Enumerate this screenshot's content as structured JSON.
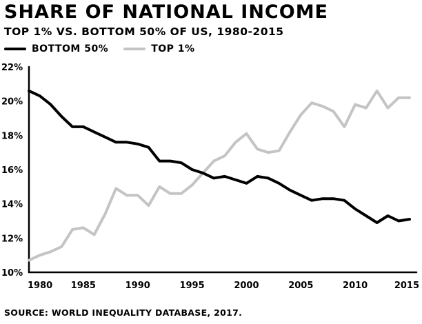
{
  "title": "SHARE OF NATIONAL INCOME",
  "subtitle": "TOP 1% VS. BOTTOM 50% OF US, 1980-2015",
  "source": "SOURCE: WORLD INEQUALITY DATABASE, 2017.",
  "legend": [
    {
      "name": "BOTTOM 50%",
      "color": "#000000"
    },
    {
      "name": "TOP 1%",
      "color": "#c4c4c4"
    }
  ],
  "chart_data": {
    "type": "line",
    "title": "SHARE OF NATIONAL INCOME",
    "subtitle": "TOP 1% VS. BOTTOM 50% OF US, 1980-2015",
    "xlim": [
      1980,
      2015
    ],
    "ylim": [
      10,
      22
    ],
    "x_ticks": [
      1980,
      1985,
      1990,
      1995,
      2000,
      2005,
      2010,
      2015
    ],
    "y_ticks": [
      10,
      12,
      14,
      16,
      18,
      20,
      22
    ],
    "y_tick_labels": [
      "10%",
      "12%",
      "14%",
      "16%",
      "18%",
      "20%",
      "22%"
    ],
    "grid": false,
    "legend_position": "top-left",
    "x": [
      1980,
      1981,
      1982,
      1983,
      1984,
      1985,
      1986,
      1987,
      1988,
      1989,
      1990,
      1991,
      1992,
      1993,
      1994,
      1995,
      1996,
      1997,
      1998,
      1999,
      2000,
      2001,
      2002,
      2003,
      2004,
      2005,
      2006,
      2007,
      2008,
      2009,
      2010,
      2011,
      2012,
      2013,
      2014,
      2015
    ],
    "series": [
      {
        "name": "BOTTOM 50%",
        "color": "#000000",
        "values": [
          20.6,
          20.3,
          19.8,
          19.1,
          18.5,
          18.5,
          18.2,
          17.9,
          17.6,
          17.6,
          17.5,
          17.3,
          16.5,
          16.5,
          16.4,
          16.0,
          15.8,
          15.5,
          15.6,
          15.4,
          15.2,
          15.6,
          15.5,
          15.2,
          14.8,
          14.5,
          14.2,
          14.3,
          14.3,
          14.2,
          13.7,
          13.3,
          12.9,
          13.3,
          13.0,
          13.1
        ]
      },
      {
        "name": "TOP 1%",
        "color": "#c4c4c4",
        "values": [
          10.7,
          11.0,
          11.2,
          11.5,
          12.5,
          12.6,
          12.2,
          13.4,
          14.9,
          14.5,
          14.5,
          13.9,
          15.0,
          14.6,
          14.6,
          15.1,
          15.8,
          16.5,
          16.8,
          17.6,
          18.1,
          17.2,
          17.0,
          17.1,
          18.2,
          19.2,
          19.9,
          19.7,
          19.4,
          18.5,
          19.8,
          19.6,
          20.6,
          19.6,
          20.2,
          20.2
        ]
      }
    ]
  }
}
